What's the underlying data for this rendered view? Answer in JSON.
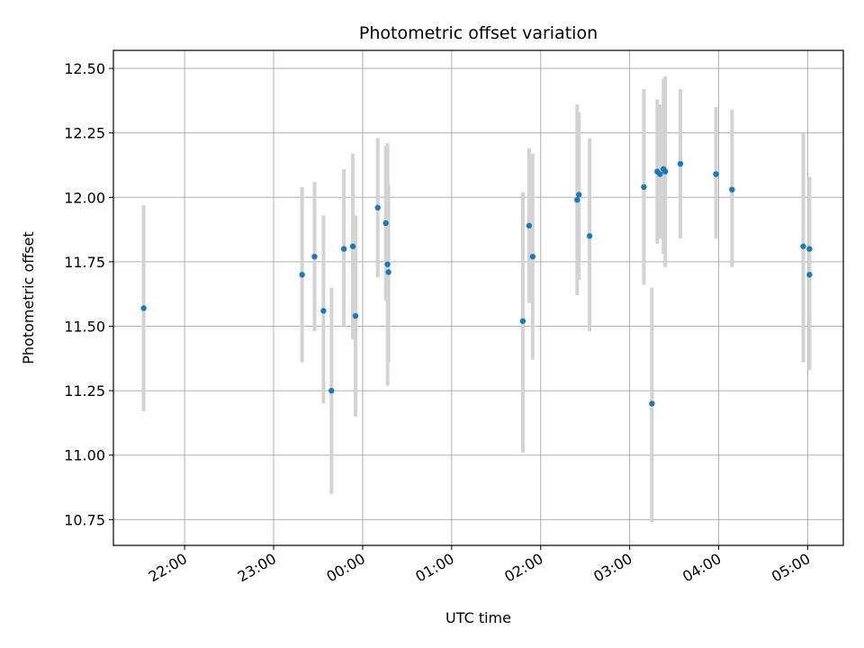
{
  "chart_data": {
    "type": "scatter",
    "title": "Photometric offset variation",
    "xlabel": "UTC time",
    "ylabel": "Photometric offset",
    "x_unit": "UTC time, hours relative to 00:00 on the plotted night",
    "xlim": [
      -2.8,
      5.4
    ],
    "ylim": [
      10.65,
      12.57
    ],
    "grid": true,
    "x_ticks": [
      {
        "value": -2,
        "label": "22:00"
      },
      {
        "value": -1,
        "label": "23:00"
      },
      {
        "value": 0,
        "label": "00:00"
      },
      {
        "value": 1,
        "label": "01:00"
      },
      {
        "value": 2,
        "label": "02:00"
      },
      {
        "value": 3,
        "label": "03:00"
      },
      {
        "value": 4,
        "label": "04:00"
      },
      {
        "value": 5,
        "label": "05:00"
      }
    ],
    "y_ticks": [
      {
        "value": 10.75,
        "label": "10.75"
      },
      {
        "value": 11.0,
        "label": "11.00"
      },
      {
        "value": 11.25,
        "label": "11.25"
      },
      {
        "value": 11.5,
        "label": "11.50"
      },
      {
        "value": 11.75,
        "label": "11.75"
      },
      {
        "value": 12.0,
        "label": "12.00"
      },
      {
        "value": 12.25,
        "label": "12.25"
      },
      {
        "value": 12.5,
        "label": "12.50"
      }
    ],
    "marker_color": "#1f77b4",
    "errorbar_color": "#d3d3d3",
    "points": [
      {
        "x": -2.46,
        "y": 11.57,
        "ylo": 11.17,
        "yhi": 11.97
      },
      {
        "x": -0.68,
        "y": 11.7,
        "ylo": 11.36,
        "yhi": 12.04
      },
      {
        "x": -0.54,
        "y": 11.77,
        "ylo": 11.48,
        "yhi": 12.06
      },
      {
        "x": -0.44,
        "y": 11.56,
        "ylo": 11.2,
        "yhi": 11.93
      },
      {
        "x": -0.35,
        "y": 11.25,
        "ylo": 10.85,
        "yhi": 11.65
      },
      {
        "x": -0.21,
        "y": 11.8,
        "ylo": 11.5,
        "yhi": 12.11
      },
      {
        "x": -0.11,
        "y": 11.81,
        "ylo": 11.45,
        "yhi": 12.17
      },
      {
        "x": -0.08,
        "y": 11.54,
        "ylo": 11.15,
        "yhi": 11.93
      },
      {
        "x": 0.17,
        "y": 11.96,
        "ylo": 11.69,
        "yhi": 12.23
      },
      {
        "x": 0.26,
        "y": 11.9,
        "ylo": 11.6,
        "yhi": 12.2
      },
      {
        "x": 0.28,
        "y": 11.74,
        "ylo": 11.27,
        "yhi": 12.21
      },
      {
        "x": 0.29,
        "y": 11.71,
        "ylo": 11.36,
        "yhi": 12.05
      },
      {
        "x": 1.8,
        "y": 11.52,
        "ylo": 11.01,
        "yhi": 12.02
      },
      {
        "x": 1.87,
        "y": 11.89,
        "ylo": 11.59,
        "yhi": 12.19
      },
      {
        "x": 1.91,
        "y": 11.77,
        "ylo": 11.37,
        "yhi": 12.17
      },
      {
        "x": 2.41,
        "y": 11.99,
        "ylo": 11.62,
        "yhi": 12.36
      },
      {
        "x": 2.43,
        "y": 12.01,
        "ylo": 11.68,
        "yhi": 12.33
      },
      {
        "x": 2.55,
        "y": 11.85,
        "ylo": 11.48,
        "yhi": 12.23
      },
      {
        "x": 3.16,
        "y": 12.04,
        "ylo": 11.66,
        "yhi": 12.42
      },
      {
        "x": 3.25,
        "y": 11.2,
        "ylo": 10.74,
        "yhi": 11.65
      },
      {
        "x": 3.31,
        "y": 12.1,
        "ylo": 11.82,
        "yhi": 12.38
      },
      {
        "x": 3.34,
        "y": 12.09,
        "ylo": 11.84,
        "yhi": 12.36
      },
      {
        "x": 3.38,
        "y": 12.11,
        "ylo": 11.78,
        "yhi": 12.46
      },
      {
        "x": 3.4,
        "y": 12.1,
        "ylo": 11.73,
        "yhi": 12.47
      },
      {
        "x": 3.57,
        "y": 12.13,
        "ylo": 11.84,
        "yhi": 12.42
      },
      {
        "x": 3.97,
        "y": 12.09,
        "ylo": 11.84,
        "yhi": 12.35
      },
      {
        "x": 4.15,
        "y": 12.03,
        "ylo": 11.73,
        "yhi": 12.34
      },
      {
        "x": 4.95,
        "y": 11.81,
        "ylo": 11.36,
        "yhi": 12.25
      },
      {
        "x": 5.02,
        "y": 11.8,
        "ylo": 11.52,
        "yhi": 12.07
      },
      {
        "x": 5.02,
        "y": 11.7,
        "ylo": 11.33,
        "yhi": 12.08
      }
    ]
  }
}
